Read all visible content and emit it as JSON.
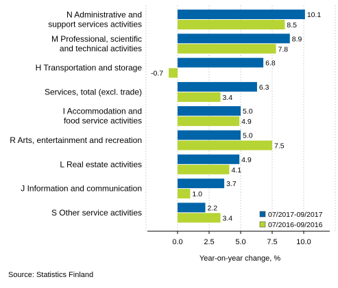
{
  "source_note": "Source: Statistics Finland",
  "chart_data": {
    "type": "bar",
    "orientation": "horizontal",
    "categories": [
      [
        "N Administrative and",
        "support services activities"
      ],
      [
        "M Professional, scientific",
        "and technical activities"
      ],
      [
        "H Transportation and storage"
      ],
      [
        "Services, total (excl. trade)"
      ],
      [
        "I Accommodation and",
        "food service activities"
      ],
      [
        "R Arts, entertainment and recreation"
      ],
      [
        "L Real estate activities"
      ],
      [
        "J Information and communication"
      ],
      [
        "S Other service activities"
      ]
    ],
    "series": [
      {
        "name": "07/2017-09/2017",
        "color": "#0064a8",
        "values": [
          10.1,
          8.9,
          6.8,
          6.3,
          5.0,
          5.0,
          4.9,
          3.7,
          2.2
        ],
        "value_labels": [
          "10.1",
          "8.9",
          "6.8",
          "6.3",
          "5.0",
          "5.0",
          "4.9",
          "3.7",
          "2.2"
        ]
      },
      {
        "name": "07/2016-09/2016",
        "color": "#b6d433",
        "values": [
          8.5,
          7.8,
          -0.7,
          3.4,
          4.9,
          7.5,
          4.1,
          1.0,
          3.4
        ],
        "value_labels": [
          "8.5",
          "7.8",
          "-0.7",
          "3.4",
          "4.9",
          "7.5",
          "4.1",
          "1.0",
          "3.4"
        ]
      }
    ],
    "xlabel": "Year-on-year change, %",
    "xlim": [
      -2.5,
      12.5
    ],
    "xticks": [
      0.0,
      2.5,
      5.0,
      7.5,
      10.0
    ],
    "xtick_labels": [
      "0.0",
      "2.5",
      "5.0",
      "7.5",
      "10.0"
    ],
    "grid": true,
    "legend_position": "bottom-right"
  }
}
